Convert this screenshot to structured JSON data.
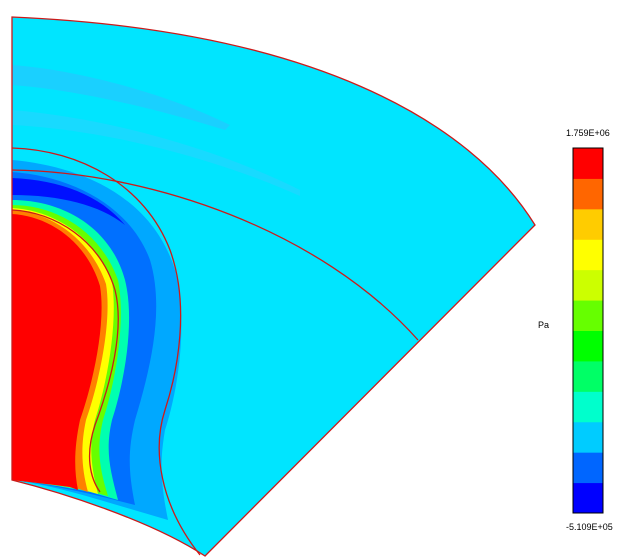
{
  "legend": {
    "max_label": "1.759E+06",
    "min_label": "-5.109E+05",
    "unit": "Pa",
    "colors": [
      "#0000ff",
      "#0066ff",
      "#00ccff",
      "#00ffcc",
      "#00ff66",
      "#00ff00",
      "#66ff00",
      "#ccff00",
      "#ffff00",
      "#ffcc00",
      "#ff6600",
      "#ff0000"
    ]
  },
  "palette": {
    "background_field": "#00e5ff",
    "light_band": "#1ad0ff",
    "blue_band": "#0080ff",
    "deep_blue": "#0010ff",
    "hot_core": "#ff0000",
    "outline": "#cc1a1a"
  }
}
